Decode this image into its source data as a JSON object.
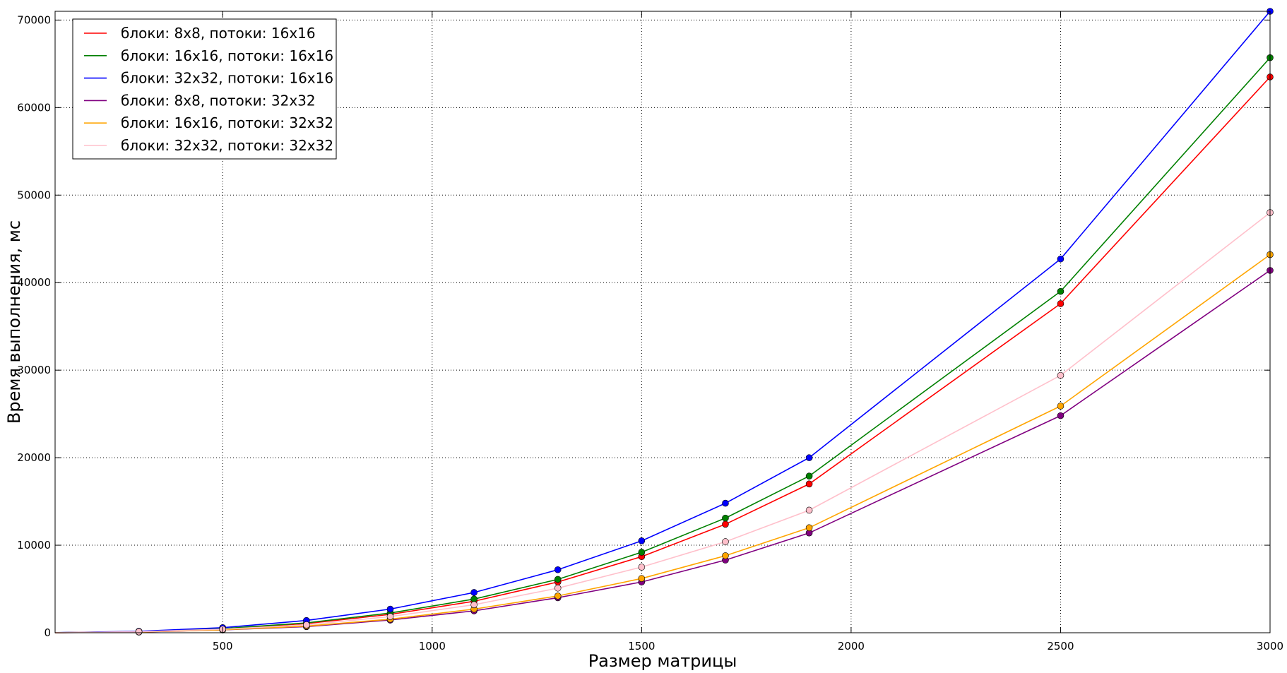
{
  "chart_data": {
    "type": "line",
    "title": "",
    "xlabel": "Размер матрицы",
    "ylabel": "Время выполнения, мс",
    "xlim": [
      100,
      3000
    ],
    "ylim": [
      0,
      71000
    ],
    "x_ticks": [
      500,
      1000,
      1500,
      2000,
      2500,
      3000
    ],
    "x_tick_labels": [
      "500",
      "1000",
      "1500",
      "2000",
      "2500",
      "3000"
    ],
    "y_ticks": [
      0,
      10000,
      20000,
      30000,
      40000,
      50000,
      60000,
      70000
    ],
    "y_tick_labels": [
      "0",
      "10000",
      "20000",
      "30000",
      "40000",
      "50000",
      "60000",
      "70000"
    ],
    "grid": true,
    "legend_position": "top-left",
    "x": [
      100,
      300,
      500,
      700,
      900,
      1100,
      1300,
      1500,
      1700,
      1900,
      2500,
      3000
    ],
    "series": [
      {
        "name": "блоки: 8x8, потоки: 16x16",
        "color": "#ff0000",
        "values": [
          10,
          130,
          430,
          1050,
          2100,
          3600,
          5800,
          8700,
          12400,
          17000,
          37600,
          63500
        ]
      },
      {
        "name": "блоки: 16x16, потоки: 16x16",
        "color": "#008000",
        "values": [
          10,
          140,
          470,
          1130,
          2250,
          3850,
          6100,
          9200,
          13100,
          17900,
          39000,
          65700
        ]
      },
      {
        "name": "блоки: 32x32, потоки: 16x16",
        "color": "#0000ff",
        "values": [
          15,
          170,
          580,
          1400,
          2700,
          4600,
          7200,
          10500,
          14800,
          20000,
          42700,
          71000
        ]
      },
      {
        "name": "блоки: 8x8, потоки: 32x32",
        "color": "#800080",
        "values": [
          8,
          80,
          320,
          700,
          1450,
          2500,
          4000,
          5800,
          8300,
          11400,
          24800,
          41400
        ]
      },
      {
        "name": "блоки: 16x16, потоки: 32x32",
        "color": "#ffa500",
        "values": [
          8,
          90,
          340,
          760,
          1550,
          2700,
          4200,
          6200,
          8800,
          12000,
          25900,
          43200
        ]
      },
      {
        "name": "блоки: 32x32, потоки: 32x32",
        "color": "#ffc0cb",
        "values": [
          9,
          110,
          400,
          900,
          1850,
          3200,
          5100,
          7500,
          10400,
          14000,
          29400,
          48000
        ]
      }
    ]
  }
}
